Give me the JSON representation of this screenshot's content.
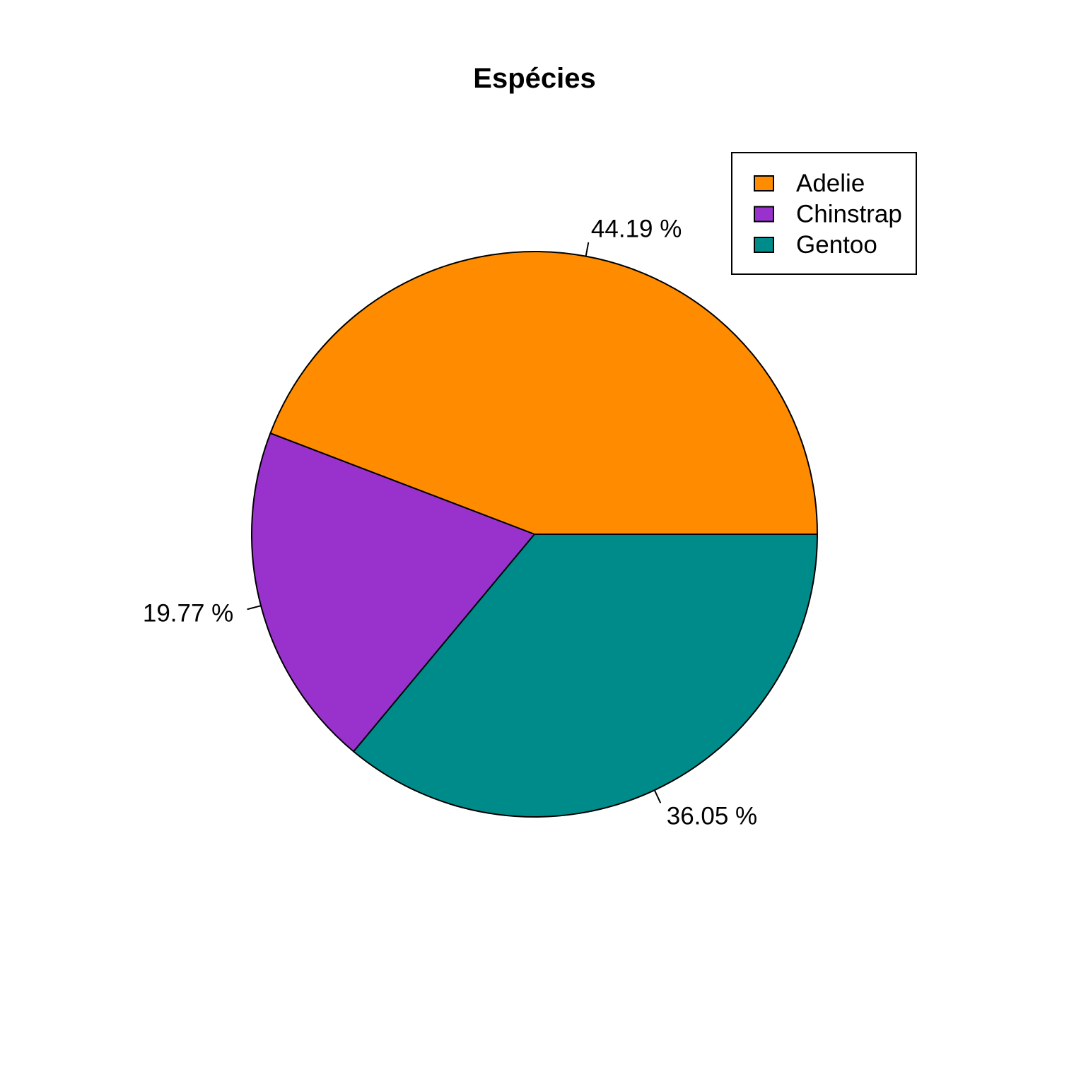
{
  "chart_data": {
    "type": "pie",
    "title": "Espécies",
    "slices": [
      {
        "name": "Adelie",
        "value": 44.19,
        "label": "44.19 %",
        "color": "#FF8C00"
      },
      {
        "name": "Chinstrap",
        "value": 19.77,
        "label": "19.77 %",
        "color": "#9932CC"
      },
      {
        "name": "Gentoo",
        "value": 36.05,
        "label": "36.05 %",
        "color": "#008B8B"
      }
    ],
    "start_angle_deg": 0,
    "direction": "counterclockwise",
    "legend": {
      "placement": "top-right",
      "entries": [
        "Adelie",
        "Chinstrap",
        "Gentoo"
      ]
    }
  }
}
